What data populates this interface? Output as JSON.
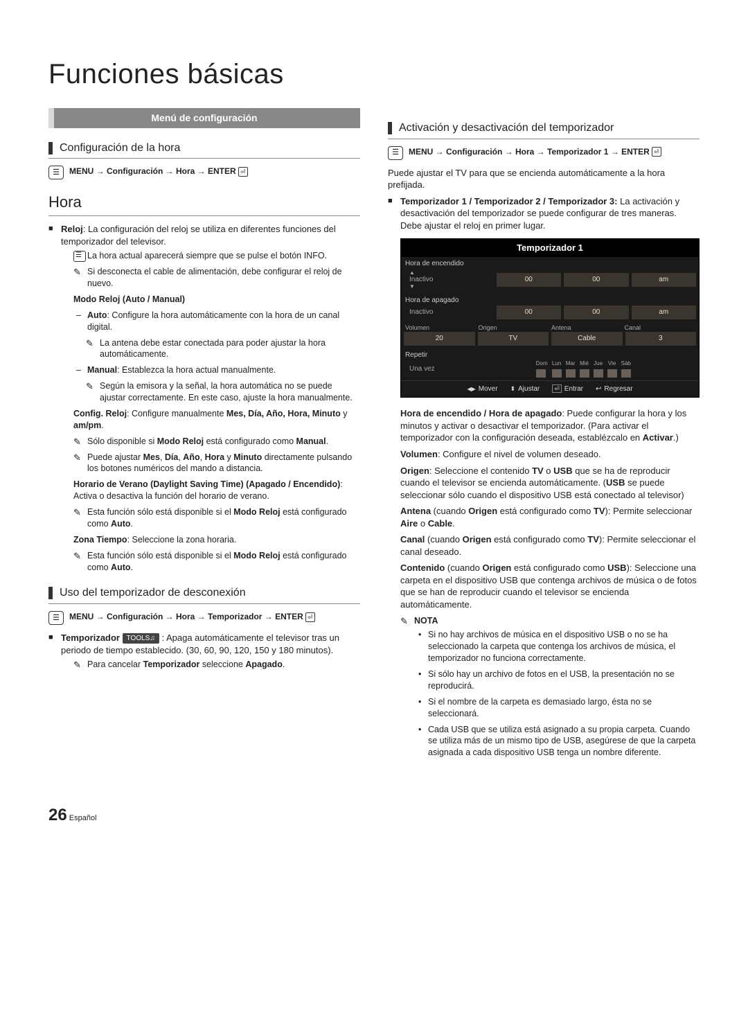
{
  "page_title": "Funciones básicas",
  "menu_banner": "Menú de configuración",
  "left": {
    "sec1_heading": "Configuración de la hora",
    "sec1_menu_path": "MENU → Configuración → Hora → ENTER",
    "hora_heading": "Hora",
    "reloj_intro": "Reloj: La configuración del reloj se utiliza en diferentes funciones del temporizador del televisor.",
    "info_note": "La hora actual aparecerá siempre que se pulse el botón INFO.",
    "disconnect_note": "Si desconecta el cable de alimentación, debe configurar el reloj de nuevo.",
    "modo_reloj_heading": "Modo Reloj (Auto / Manual)",
    "auto_line": "Auto: Configure la hora automáticamente con la hora de un canal digital.",
    "auto_note": "La antena debe estar conectada para poder ajustar la hora automáticamente.",
    "manual_line": "Manual: Establezca la hora actual manualmente.",
    "manual_note": "Según la emisora y la señal, la hora automática no se puede ajustar correctamente. En este caso, ajuste la hora manualmente.",
    "config_reloj": "Config. Reloj: Configure manualmente Mes, Día, Año, Hora, Minuto y am/pm.",
    "config_note1": "Sólo disponible si Modo Reloj está configurado como Manual.",
    "config_note2": "Puede ajustar Mes, Día, Año, Hora y Minuto directamente pulsando los botones numéricos del mando a distancia.",
    "dst_line": "Horario de Verano (Daylight Saving Time) (Apagado / Encendido): Activa o desactiva la función del horario de verano.",
    "dst_note": "Esta función sólo está disponible si el Modo Reloj está configurado como Auto.",
    "zona_line": "Zona Tiempo: Seleccione la zona horaria.",
    "zona_note": "Esta función sólo está disponible si el Modo Reloj está configurado como Auto.",
    "sec2_heading": "Uso del temporizador de desconexión",
    "sec2_menu_path": "MENU → Configuración → Hora → Temporizador → ENTER",
    "temporizador_label": "Temporizador",
    "tools_label": "TOOLS",
    "temporizador_text": ": Apaga automáticamente el televisor tras un periodo de tiempo establecido. (30, 60, 90, 120, 150 y 180 minutos).",
    "temp_note": "Para cancelar Temporizador seleccione Apagado."
  },
  "right": {
    "sec3_heading": "Activación y desactivación del temporizador",
    "sec3_menu_path": "MENU → Configuración → Hora → Temporizador 1 → ENTER",
    "intro": "Puede ajustar el TV para que se encienda automáticamente a la hora prefijada.",
    "timers_heading": "Temporizador 1 / Temporizador 2 / Temporizador 3:",
    "timers_text": "La activación y desactivación del temporizador se puede configurar de tres maneras. Debe ajustar el reloj en primer lugar.",
    "timer_box": {
      "title": "Temporizador 1",
      "on_label": "Hora de encendido",
      "off_label": "Hora de apagado",
      "inactive": "Inactivo",
      "hh": "00",
      "mm": "00",
      "ampm": "am",
      "row3_headers": [
        "Volumen",
        "Origen",
        "Antena",
        "Canal"
      ],
      "row3_values": [
        "20",
        "TV",
        "Cable",
        "3"
      ],
      "repeat_label": "Repetir",
      "repeat_value": "Una vez",
      "days": [
        "Dom",
        "Lun",
        "Mar",
        "Mié",
        "Jue",
        "Vie",
        "Sáb"
      ],
      "footer": {
        "mover": "Mover",
        "ajustar": "Ajustar",
        "entrar": "Entrar",
        "regresar": "Regresar"
      }
    },
    "hora_enc_line": "Hora de encendido / Hora de apagado: Puede configurar la hora y los minutos y activar o desactivar el temporizador. (Para activar el temporizador con la configuración deseada, establézcalo en Activar.)",
    "volumen_line": "Volumen: Configure el nivel de volumen deseado.",
    "origen_line": "Origen: Seleccione el contenido TV o USB que se ha de reproducir cuando el televisor se encienda automáticamente. (USB se puede seleccionar sólo cuando el dispositivo USB está conectado al televisor)",
    "antena_line": "Antena (cuando Origen está configurado como TV): Permite seleccionar Aire o Cable.",
    "canal_line": "Canal (cuando Origen está configurado como TV): Permite seleccionar el canal deseado.",
    "contenido_line": "Contenido (cuando Origen está configurado como USB): Seleccione una carpeta en el dispositivo USB que contenga archivos de música o de fotos que se han de reproducir cuando el televisor se encienda automáticamente.",
    "nota_label": "NOTA",
    "nota1": "Si no hay archivos de música en el dispositivo USB o no se ha seleccionado la carpeta que contenga los archivos de música, el temporizador no funciona correctamente.",
    "nota2": "Si sólo hay un archivo de fotos en el USB, la presentación no se reproducirá.",
    "nota3": "Si el nombre de la carpeta es demasiado largo, ésta no se seleccionará.",
    "nota4": "Cada USB que se utiliza está asignado a su propia carpeta. Cuando se utiliza más de un mismo tipo de USB, asegúrese de que la carpeta asignada a cada dispositivo USB tenga un nombre diferente."
  },
  "footer": {
    "num": "26",
    "lang": "Español"
  }
}
